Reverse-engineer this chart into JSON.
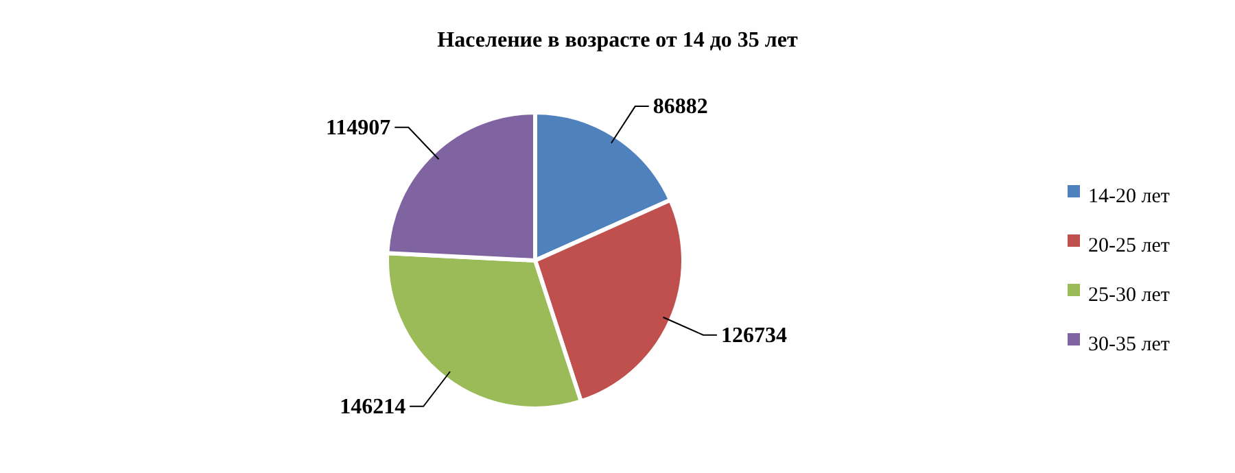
{
  "chart_data": {
    "type": "pie",
    "title": "Население в возрасте от 14 до 35 лет",
    "categories": [
      "14-20 лет",
      "20-25 лет",
      "25-30 лет",
      "30-35 лет"
    ],
    "values": [
      86882,
      126734,
      146214,
      114907
    ],
    "colors": [
      "#4f81bd",
      "#c0504d",
      "#9bbb59",
      "#8064a2"
    ],
    "data_labels": true,
    "legend": "right"
  }
}
